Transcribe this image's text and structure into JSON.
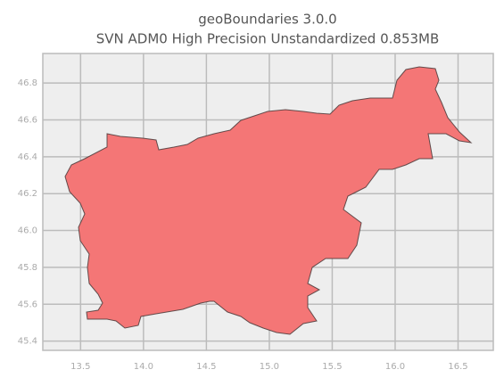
{
  "chart_data": {
    "type": "map",
    "title": "geoBoundaries 3.0.0",
    "subtitle": "SVN ADM0 High Precision Unstandardized 0.853MB",
    "xlim": [
      13.2,
      16.78
    ],
    "ylim": [
      45.35,
      46.96
    ],
    "xticks": [
      13.5,
      {
        "value": 14,
        "label": "14.0"
      },
      14.5,
      {
        "value": 15,
        "label": "15.0"
      },
      15.5,
      {
        "value": 16,
        "label": "16.0"
      },
      16.5
    ],
    "yticks": [
      45.4,
      45.6,
      45.8,
      {
        "value": 46,
        "label": "46.0"
      },
      46.2,
      46.4,
      46.6,
      46.8
    ],
    "grid": true,
    "color": "#f47676"
  }
}
